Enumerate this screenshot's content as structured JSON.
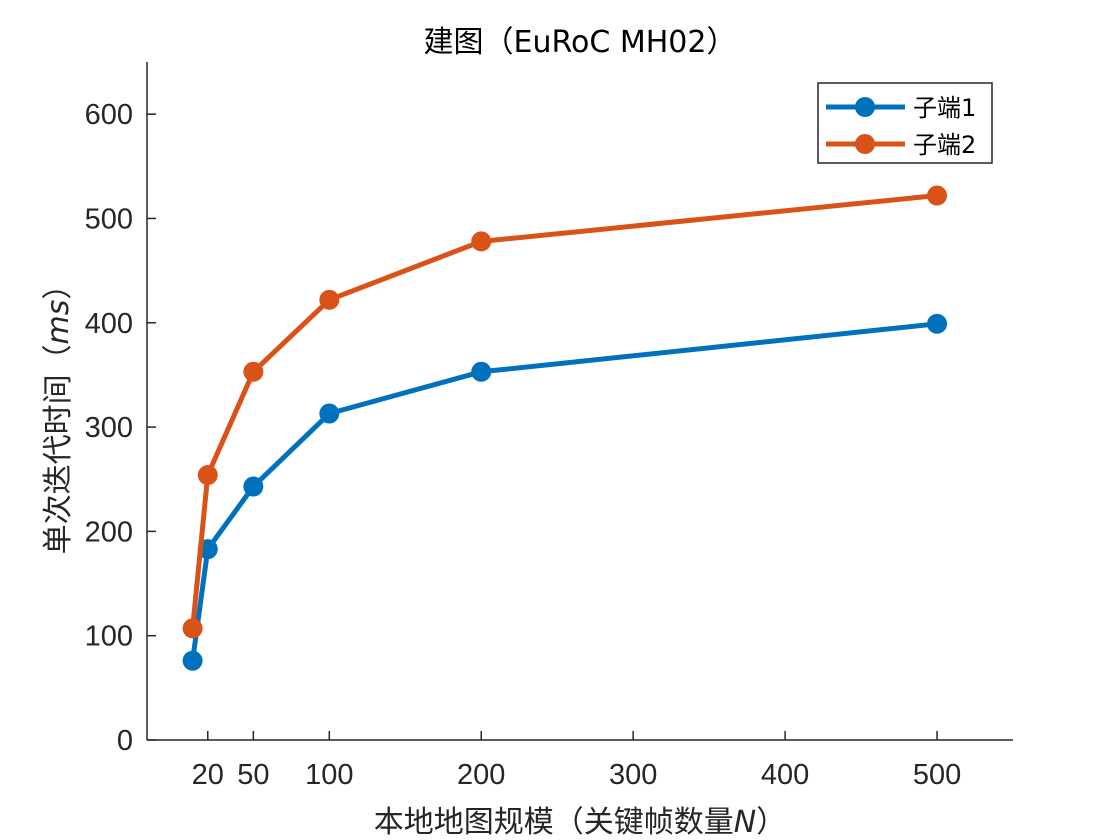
{
  "chart_data": {
    "type": "line",
    "title": "建图（EuRoC MH02）",
    "xlabel": {
      "prefix": "本地地图规模（关键帧数量",
      "variable": "N",
      "suffix": "）"
    },
    "ylabel": {
      "prefix": "单次迭代时间（",
      "variable": "ms",
      "suffix": "）"
    },
    "xlim": [
      -20,
      550
    ],
    "ylim": [
      0,
      650
    ],
    "grid": false,
    "legend_position": "top-right",
    "xticks": [
      20,
      50,
      100,
      200,
      300,
      400,
      500
    ],
    "xtick_labels": [
      "20",
      "50",
      "100",
      "200",
      "300",
      "400",
      "500"
    ],
    "yticks": [
      0,
      100,
      200,
      300,
      400,
      500,
      600
    ],
    "ytick_labels": [
      "0",
      "100",
      "200",
      "300",
      "400",
      "500",
      "600"
    ],
    "x": [
      10,
      20,
      50,
      100,
      200,
      500
    ],
    "series": [
      {
        "name": "子端1",
        "color": "#0072BD",
        "values": [
          76,
          183,
          243,
          313,
          353,
          399
        ]
      },
      {
        "name": "子端2",
        "color": "#D95319",
        "values": [
          107,
          254,
          353,
          422,
          478,
          522
        ]
      }
    ]
  }
}
